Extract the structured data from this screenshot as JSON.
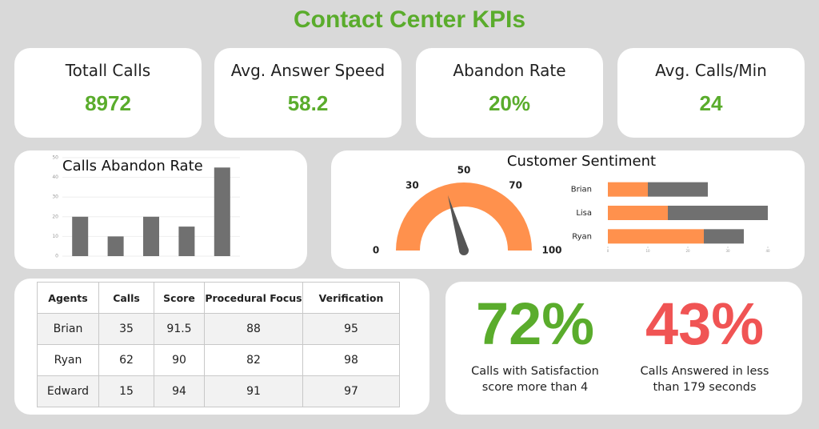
{
  "title": "Contact Center KPIs",
  "kpis": [
    {
      "label": "Totall Calls",
      "value": "8972"
    },
    {
      "label": "Avg. Answer Speed",
      "value": "58.2"
    },
    {
      "label": "Abandon Rate",
      "value": "20%"
    },
    {
      "label": "Avg. Calls/Min",
      "value": "24"
    }
  ],
  "chart_data": [
    {
      "type": "bar",
      "title": "Calls Abandon Rate",
      "categories": [
        null,
        null,
        null,
        null,
        null
      ],
      "values": [
        20,
        10,
        20,
        15,
        45
      ],
      "color": "#707070",
      "ylim": [
        0,
        50
      ],
      "yticks": [
        0,
        10,
        20,
        30,
        40,
        50
      ],
      "grid": true
    },
    {
      "type": "gauge",
      "title": "Customer Sentiment",
      "value": 41,
      "color": "#ff914d",
      "needle_color": "#555555",
      "ylim": [
        0,
        100
      ],
      "yticks": [
        0,
        30,
        50,
        70,
        100
      ]
    },
    {
      "type": "stacked-bar",
      "orientation": "horizontal",
      "categories": [
        "Brian",
        "Lisa",
        "Ryan"
      ],
      "series": [
        {
          "color": "#ff914d",
          "values": [
            10,
            15,
            24
          ]
        },
        {
          "color": "#707070",
          "values": [
            15,
            25,
            10
          ]
        }
      ],
      "xlim": [
        0,
        40
      ],
      "xticks": [
        0,
        10,
        20,
        30,
        40
      ]
    }
  ],
  "table": {
    "columns": [
      "Agents",
      "Calls",
      "Score",
      "Procedural Focus",
      "Verification"
    ],
    "rows": [
      [
        "Brian",
        35,
        91.5,
        88,
        95
      ],
      [
        "Ryan",
        62,
        90,
        82,
        98
      ],
      [
        "Edward",
        15,
        94,
        91,
        97
      ]
    ]
  },
  "stats": [
    {
      "value": "72%",
      "caption": "Calls with Satisfaction score more than 4",
      "color": "#5aac2c"
    },
    {
      "value": "43%",
      "caption": "Calls Answered in less than 179 seconds",
      "color": "#f05454"
    }
  ]
}
